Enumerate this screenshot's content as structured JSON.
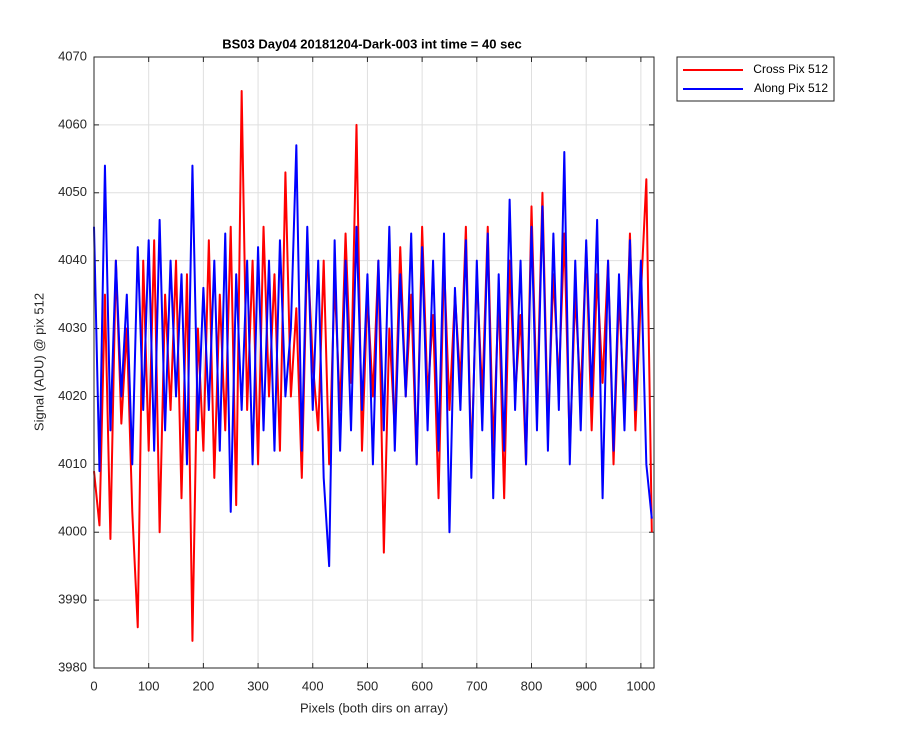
{
  "chart_data": {
    "type": "line",
    "title": "BS03 Day04 20181204-Dark-003 int time = 40 sec",
    "x_label": "Pixels (both dirs on array)",
    "y_label": "Signal (ADU) @ pix 512",
    "x": [
      0,
      10,
      20,
      30,
      40,
      50,
      60,
      70,
      80,
      90,
      100,
      110,
      120,
      130,
      140,
      150,
      160,
      170,
      180,
      190,
      200,
      210,
      220,
      230,
      240,
      250,
      260,
      270,
      280,
      290,
      300,
      310,
      320,
      330,
      340,
      350,
      360,
      370,
      380,
      390,
      400,
      410,
      420,
      430,
      440,
      450,
      460,
      470,
      480,
      490,
      500,
      510,
      520,
      530,
      540,
      550,
      560,
      570,
      580,
      590,
      600,
      610,
      620,
      630,
      640,
      650,
      660,
      670,
      680,
      690,
      700,
      710,
      720,
      730,
      740,
      750,
      760,
      770,
      780,
      790,
      800,
      810,
      820,
      830,
      840,
      850,
      860,
      870,
      880,
      890,
      900,
      910,
      920,
      930,
      940,
      950,
      960,
      970,
      980,
      990,
      1000,
      1010,
      1020
    ],
    "series": [
      {
        "name": "Cross Pix 512",
        "color": "#ff0000",
        "values": [
          4009,
          4001,
          4035,
          3999,
          4040,
          4016,
          4030,
          4003,
          3986,
          4040,
          4012,
          4043,
          4000,
          4035,
          4018,
          4040,
          4005,
          4038,
          3984,
          4030,
          4012,
          4043,
          4008,
          4035,
          4015,
          4045,
          4004,
          4065,
          4018,
          4040,
          4010,
          4045,
          4020,
          4038,
          4012,
          4053,
          4020,
          4033,
          4008,
          4042,
          4025,
          4015,
          4040,
          4010,
          4037,
          4018,
          4044,
          4022,
          4060,
          4012,
          4035,
          4020,
          4040,
          3997,
          4030,
          4015,
          4042,
          4020,
          4035,
          4010,
          4045,
          4020,
          4032,
          4005,
          4040,
          4018,
          4035,
          4022,
          4045,
          4010,
          4038,
          4020,
          4045,
          4012,
          4035,
          4005,
          4040,
          4020,
          4032,
          4010,
          4048,
          4018,
          4050,
          4015,
          4038,
          4022,
          4044,
          4012,
          4035,
          4020,
          4042,
          4015,
          4038,
          4022,
          4040,
          4010,
          4035,
          4018,
          4044,
          4015,
          4035,
          4052,
          4000
        ]
      },
      {
        "name": "Along Pix 512",
        "color": "#0000ff",
        "values": [
          4045,
          4009,
          4054,
          4015,
          4040,
          4020,
          4035,
          4010,
          4042,
          4018,
          4043,
          4012,
          4046,
          4015,
          4040,
          4020,
          4038,
          4010,
          4054,
          4015,
          4036,
          4018,
          4040,
          4012,
          4044,
          4003,
          4038,
          4018,
          4040,
          4010,
          4042,
          4015,
          4040,
          4012,
          4043,
          4020,
          4030,
          4057,
          4012,
          4045,
          4018,
          4040,
          4008,
          3995,
          4043,
          4012,
          4040,
          4015,
          4045,
          4018,
          4038,
          4010,
          4040,
          4015,
          4045,
          4012,
          4038,
          4020,
          4044,
          4010,
          4042,
          4015,
          4040,
          4012,
          4044,
          4000,
          4036,
          4018,
          4043,
          4008,
          4040,
          4015,
          4044,
          4005,
          4038,
          4012,
          4049,
          4018,
          4040,
          4010,
          4045,
          4015,
          4048,
          4012,
          4044,
          4018,
          4056,
          4010,
          4040,
          4015,
          4043,
          4020,
          4046,
          4005,
          4040,
          4012,
          4038,
          4015,
          4043,
          4018,
          4040,
          4010,
          4002
        ]
      }
    ],
    "xlim": [
      0,
      1024
    ],
    "xticks": [
      0,
      100,
      200,
      300,
      400,
      500,
      600,
      700,
      800,
      900,
      1000
    ],
    "ylim": [
      3980,
      4070
    ],
    "yticks": [
      3980,
      3990,
      4000,
      4010,
      4020,
      4030,
      4040,
      4050,
      4060,
      4070
    ],
    "grid": true,
    "legend": "outside-top-right"
  }
}
